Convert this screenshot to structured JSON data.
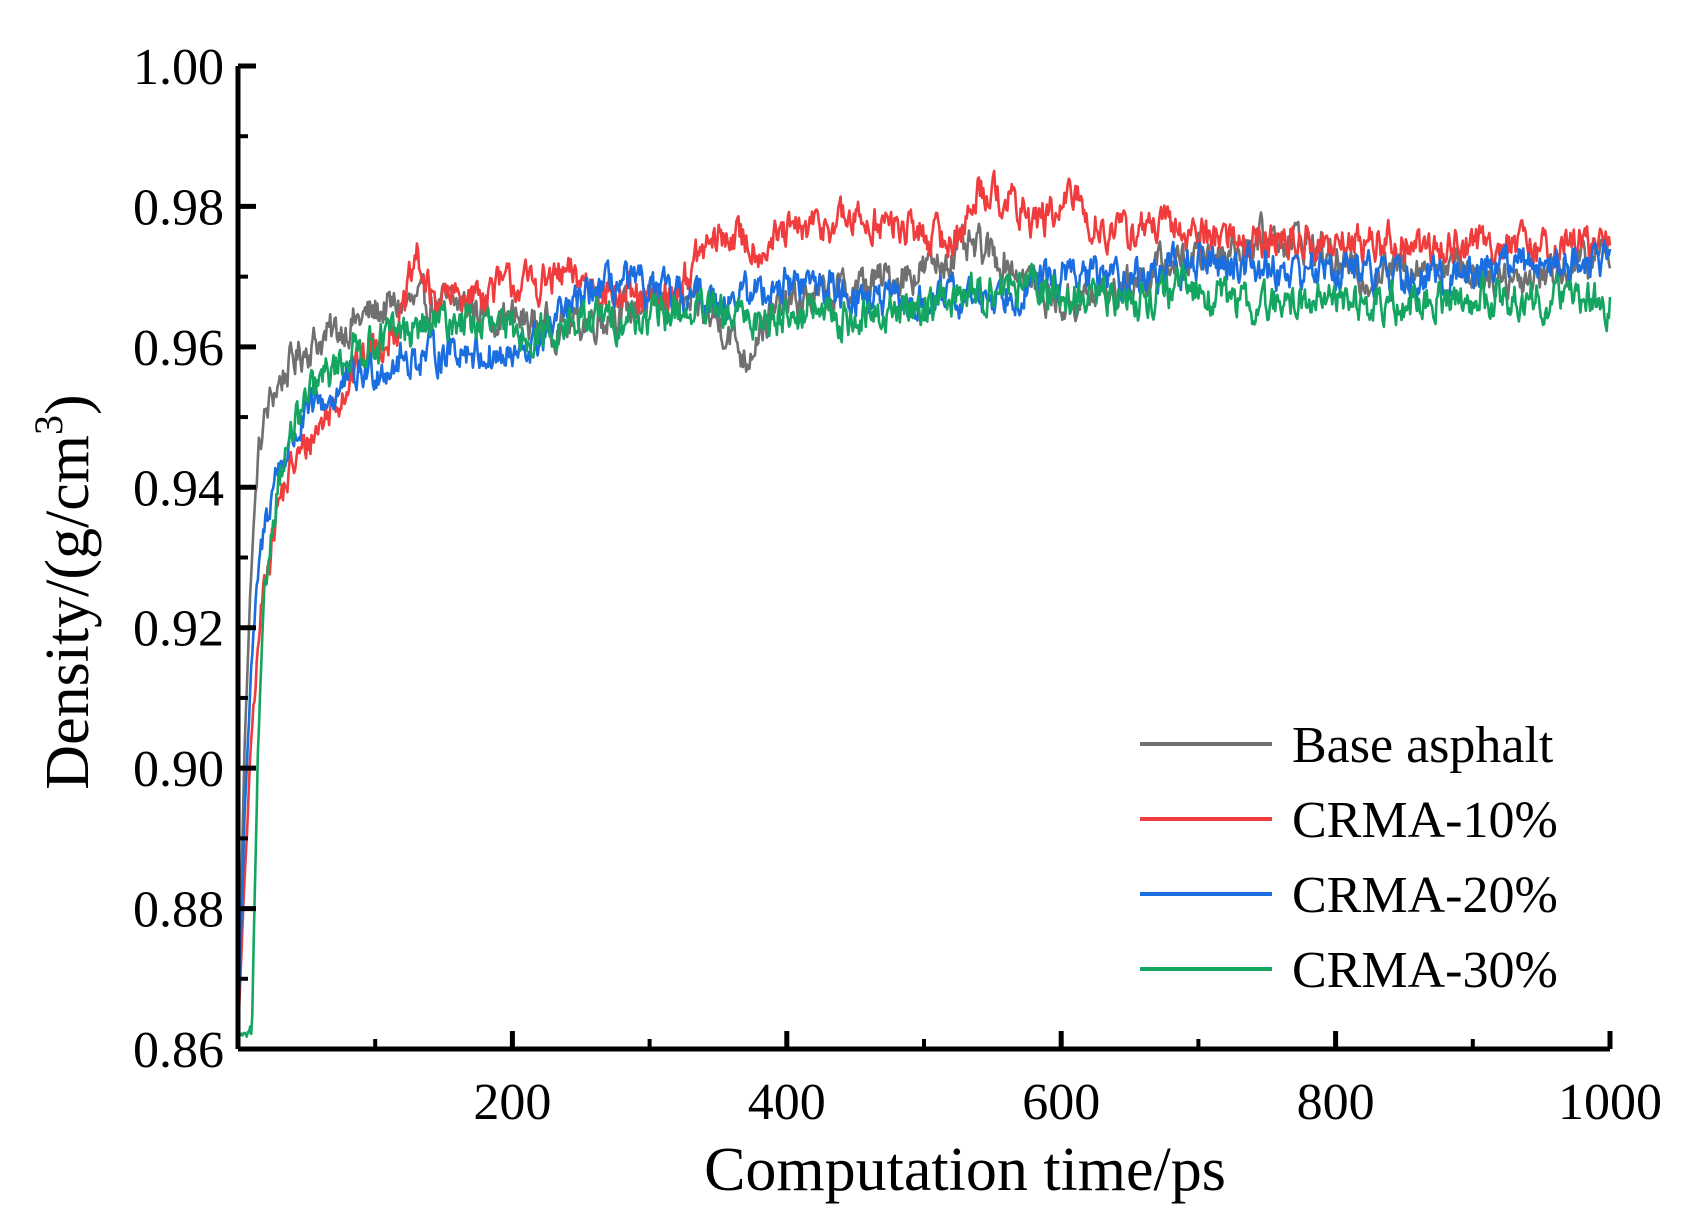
{
  "chart_data": {
    "type": "line",
    "title": "",
    "xlabel": "Computation time/ps",
    "ylabel": "Density/(g/cm",
    "ylabel_superscript": "3",
    "ylabel_close": ")",
    "xlim": [
      0,
      1000
    ],
    "ylim": [
      0.86,
      1.0
    ],
    "xticks": [
      200,
      400,
      600,
      800,
      1000
    ],
    "xtick_labels": [
      "200",
      "400",
      "600",
      "800",
      "1000"
    ],
    "yticks": [
      0.86,
      0.88,
      0.9,
      0.92,
      0.94,
      0.96,
      0.98,
      1.0
    ],
    "ytick_labels": [
      "0.86",
      "0.88",
      "0.90",
      "0.92",
      "0.94",
      "0.96",
      "0.98",
      "1.00"
    ],
    "grid": false,
    "legend_position": "bottom-right",
    "series": [
      {
        "name": "Base asphalt",
        "color": "#707070",
        "x": [
          0,
          5,
          10,
          15,
          20,
          25,
          30,
          40,
          50,
          60,
          70,
          80,
          90,
          100,
          120,
          140,
          160,
          180,
          200,
          220,
          240,
          260,
          280,
          300,
          320,
          340,
          360,
          370,
          380,
          400,
          420,
          440,
          460,
          480,
          500,
          520,
          540,
          560,
          580,
          600,
          620,
          640,
          660,
          680,
          700,
          720,
          740,
          760,
          780,
          800,
          820,
          840,
          860,
          880,
          900,
          920,
          940,
          960,
          980,
          1000
        ],
        "values": [
          0.862,
          0.905,
          0.93,
          0.945,
          0.95,
          0.953,
          0.955,
          0.958,
          0.96,
          0.961,
          0.962,
          0.963,
          0.964,
          0.965,
          0.966,
          0.966,
          0.966,
          0.965,
          0.964,
          0.963,
          0.963,
          0.964,
          0.965,
          0.966,
          0.966,
          0.965,
          0.962,
          0.958,
          0.963,
          0.966,
          0.967,
          0.968,
          0.969,
          0.97,
          0.971,
          0.973,
          0.974,
          0.972,
          0.969,
          0.966,
          0.967,
          0.968,
          0.97,
          0.972,
          0.973,
          0.974,
          0.975,
          0.976,
          0.975,
          0.972,
          0.97,
          0.971,
          0.972,
          0.972,
          0.971,
          0.97,
          0.97,
          0.971,
          0.972,
          0.974
        ]
      },
      {
        "name": "CRMA-10%",
        "color": "#f03c3c",
        "x": [
          0,
          5,
          10,
          15,
          20,
          25,
          30,
          40,
          50,
          60,
          70,
          80,
          90,
          100,
          120,
          130,
          140,
          160,
          180,
          200,
          220,
          240,
          260,
          280,
          300,
          320,
          340,
          360,
          380,
          400,
          420,
          440,
          460,
          480,
          500,
          520,
          535,
          540,
          560,
          580,
          600,
          610,
          620,
          640,
          660,
          680,
          700,
          720,
          740,
          760,
          780,
          800,
          820,
          840,
          860,
          880,
          900,
          920,
          940,
          960,
          980,
          1000
        ],
        "values": [
          0.862,
          0.885,
          0.905,
          0.918,
          0.928,
          0.933,
          0.938,
          0.943,
          0.946,
          0.949,
          0.952,
          0.955,
          0.958,
          0.96,
          0.964,
          0.973,
          0.967,
          0.967,
          0.968,
          0.969,
          0.969,
          0.97,
          0.969,
          0.967,
          0.966,
          0.968,
          0.974,
          0.976,
          0.974,
          0.976,
          0.977,
          0.978,
          0.978,
          0.977,
          0.976,
          0.975,
          0.979,
          0.983,
          0.981,
          0.978,
          0.979,
          0.982,
          0.978,
          0.976,
          0.977,
          0.977,
          0.976,
          0.976,
          0.975,
          0.975,
          0.975,
          0.974,
          0.975,
          0.975,
          0.974,
          0.974,
          0.975,
          0.975,
          0.974,
          0.974,
          0.975,
          0.974
        ]
      },
      {
        "name": "CRMA-20%",
        "color": "#1a6ee0",
        "x": [
          0,
          5,
          10,
          15,
          20,
          25,
          30,
          40,
          50,
          60,
          70,
          80,
          90,
          100,
          120,
          140,
          160,
          180,
          200,
          220,
          240,
          260,
          280,
          300,
          320,
          340,
          360,
          380,
          400,
          420,
          440,
          460,
          480,
          500,
          520,
          540,
          560,
          580,
          600,
          620,
          640,
          660,
          680,
          700,
          720,
          740,
          760,
          780,
          800,
          820,
          840,
          860,
          880,
          900,
          920,
          940,
          960,
          980,
          1000
        ],
        "values": [
          0.862,
          0.895,
          0.915,
          0.928,
          0.935,
          0.94,
          0.943,
          0.947,
          0.95,
          0.952,
          0.953,
          0.955,
          0.956,
          0.957,
          0.958,
          0.959,
          0.96,
          0.959,
          0.958,
          0.961,
          0.965,
          0.968,
          0.969,
          0.968,
          0.967,
          0.967,
          0.967,
          0.968,
          0.969,
          0.969,
          0.968,
          0.967,
          0.966,
          0.966,
          0.967,
          0.967,
          0.968,
          0.969,
          0.97,
          0.97,
          0.97,
          0.97,
          0.971,
          0.972,
          0.972,
          0.972,
          0.971,
          0.971,
          0.971,
          0.971,
          0.97,
          0.969,
          0.97,
          0.971,
          0.972,
          0.972,
          0.972,
          0.972,
          0.973
        ]
      },
      {
        "name": "CRMA-30%",
        "color": "#14a560",
        "x": [
          0,
          5,
          10,
          15,
          20,
          25,
          30,
          40,
          50,
          60,
          70,
          80,
          90,
          100,
          120,
          140,
          160,
          180,
          200,
          220,
          240,
          260,
          280,
          300,
          320,
          340,
          360,
          380,
          400,
          420,
          440,
          460,
          480,
          500,
          520,
          540,
          560,
          580,
          600,
          620,
          640,
          660,
          680,
          700,
          720,
          740,
          760,
          780,
          800,
          820,
          840,
          860,
          880,
          900,
          920,
          940,
          960,
          980,
          1000
        ],
        "values": [
          0.862,
          0.862,
          0.862,
          0.905,
          0.925,
          0.935,
          0.942,
          0.948,
          0.952,
          0.955,
          0.957,
          0.959,
          0.96,
          0.961,
          0.962,
          0.963,
          0.964,
          0.963,
          0.962,
          0.962,
          0.963,
          0.964,
          0.964,
          0.964,
          0.965,
          0.965,
          0.964,
          0.964,
          0.965,
          0.965,
          0.964,
          0.964,
          0.965,
          0.966,
          0.967,
          0.968,
          0.969,
          0.968,
          0.967,
          0.967,
          0.967,
          0.967,
          0.968,
          0.968,
          0.967,
          0.966,
          0.966,
          0.967,
          0.967,
          0.966,
          0.966,
          0.966,
          0.967,
          0.967,
          0.967,
          0.967,
          0.967,
          0.967,
          0.966
        ]
      }
    ]
  }
}
